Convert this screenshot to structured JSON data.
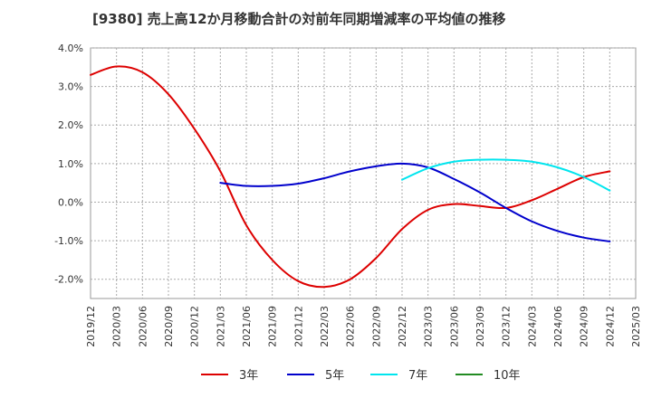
{
  "chart_data": {
    "type": "line",
    "title": "[9380]  売上高12か月移動合計の対前年同期増減率の平均値の推移",
    "xlabel": "",
    "ylabel": "",
    "ylim": [
      -2.5,
      4.0
    ],
    "y_ticks": [
      4.0,
      3.0,
      2.0,
      1.0,
      0.0,
      -1.0,
      -2.0
    ],
    "y_tick_labels": [
      "4.0%",
      "3.0%",
      "2.0%",
      "1.0%",
      "0.0%",
      "-1.0%",
      "-2.0%"
    ],
    "x_tick_labels": [
      "2019/12",
      "2020/03",
      "2020/06",
      "2020/09",
      "2020/12",
      "2021/03",
      "2021/06",
      "2021/09",
      "2021/12",
      "2022/03",
      "2022/06",
      "2022/09",
      "2022/12",
      "2023/03",
      "2023/06",
      "2023/09",
      "2023/12",
      "2024/03",
      "2024/06",
      "2024/09",
      "2024/12",
      "2025/03"
    ],
    "grid": true,
    "legend_position": "bottom",
    "series": [
      {
        "name": "3年",
        "color": "#dd0000",
        "x": [
          "2019/12",
          "2020/03",
          "2020/06",
          "2020/09",
          "2020/12",
          "2021/03",
          "2021/06",
          "2021/09",
          "2021/12",
          "2022/03",
          "2022/06",
          "2022/09",
          "2022/12",
          "2023/03",
          "2023/06",
          "2023/09",
          "2023/12",
          "2024/03",
          "2024/06",
          "2024/09",
          "2024/12"
        ],
        "values": [
          3.3,
          3.52,
          3.37,
          2.8,
          1.9,
          0.8,
          -0.6,
          -1.5,
          -2.05,
          -2.2,
          -2.0,
          -1.45,
          -0.7,
          -0.2,
          -0.05,
          -0.1,
          -0.15,
          0.05,
          0.35,
          0.65,
          0.8
        ]
      },
      {
        "name": "5年",
        "color": "#0000cc",
        "x": [
          "2021/03",
          "2021/06",
          "2021/09",
          "2021/12",
          "2022/03",
          "2022/06",
          "2022/09",
          "2022/12",
          "2023/03",
          "2023/06",
          "2023/09",
          "2023/12",
          "2024/03",
          "2024/06",
          "2024/09",
          "2024/12"
        ],
        "values": [
          0.5,
          0.42,
          0.42,
          0.48,
          0.62,
          0.8,
          0.93,
          1.0,
          0.9,
          0.6,
          0.25,
          -0.15,
          -0.5,
          -0.75,
          -0.92,
          -1.02
        ]
      },
      {
        "name": "7年",
        "color": "#00e5ee",
        "x": [
          "2022/12",
          "2023/03",
          "2023/06",
          "2023/09",
          "2023/12",
          "2024/03",
          "2024/06",
          "2024/09",
          "2024/12"
        ],
        "values": [
          0.58,
          0.88,
          1.05,
          1.1,
          1.1,
          1.05,
          0.9,
          0.65,
          0.3
        ]
      },
      {
        "name": "10年",
        "color": "#228b22",
        "x": [],
        "values": []
      }
    ]
  }
}
